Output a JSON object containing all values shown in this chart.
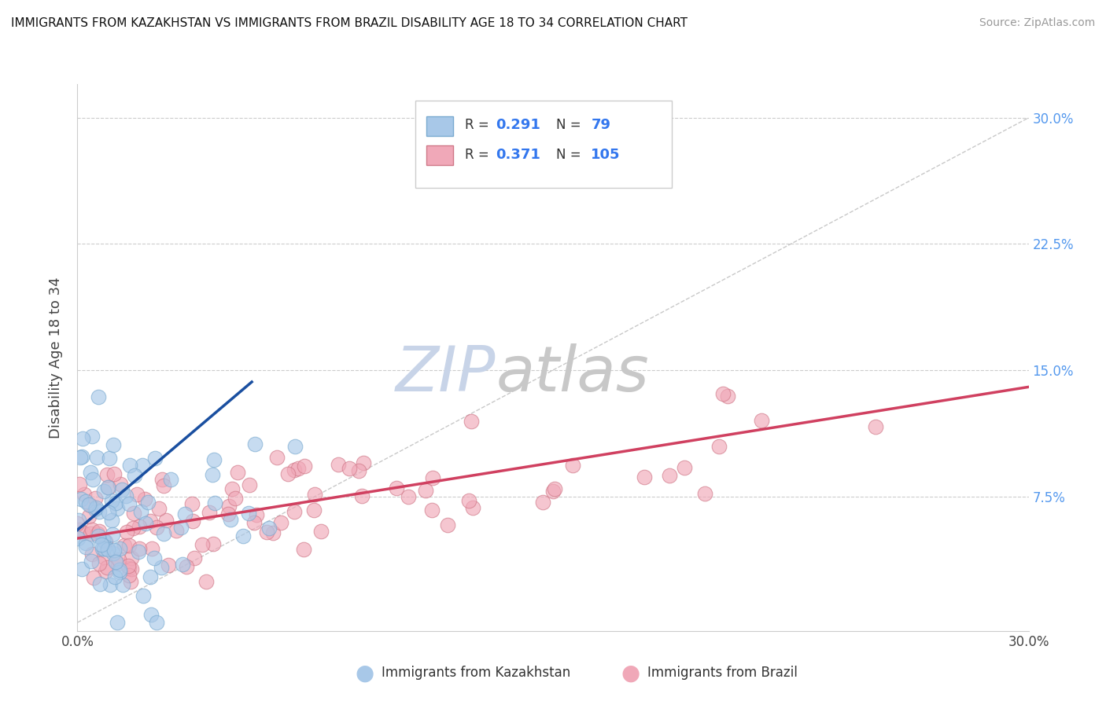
{
  "title": "IMMIGRANTS FROM KAZAKHSTAN VS IMMIGRANTS FROM BRAZIL DISABILITY AGE 18 TO 34 CORRELATION CHART",
  "source": "Source: ZipAtlas.com",
  "ylabel": "Disability Age 18 to 34",
  "xlim": [
    0.0,
    0.3
  ],
  "ylim": [
    -0.005,
    0.32
  ],
  "color_kaz": "#a8c8e8",
  "color_bra": "#f0a8b8",
  "color_kaz_line": "#1a4fa0",
  "color_bra_line": "#d04060",
  "color_kaz_edge": "#7aaad0",
  "color_bra_edge": "#d07888",
  "watermark_zip": "#c8d4e8",
  "watermark_atlas": "#c8c8c8",
  "background_color": "#ffffff",
  "plot_bg": "#ffffff",
  "grid_color": "#cccccc",
  "diag_color": "#bbbbbb",
  "tick_color_right": "#5599ee",
  "legend_border": "#cccccc",
  "n_kaz": 79,
  "n_bra": 105,
  "R_kaz": 0.291,
  "R_bra": 0.371
}
